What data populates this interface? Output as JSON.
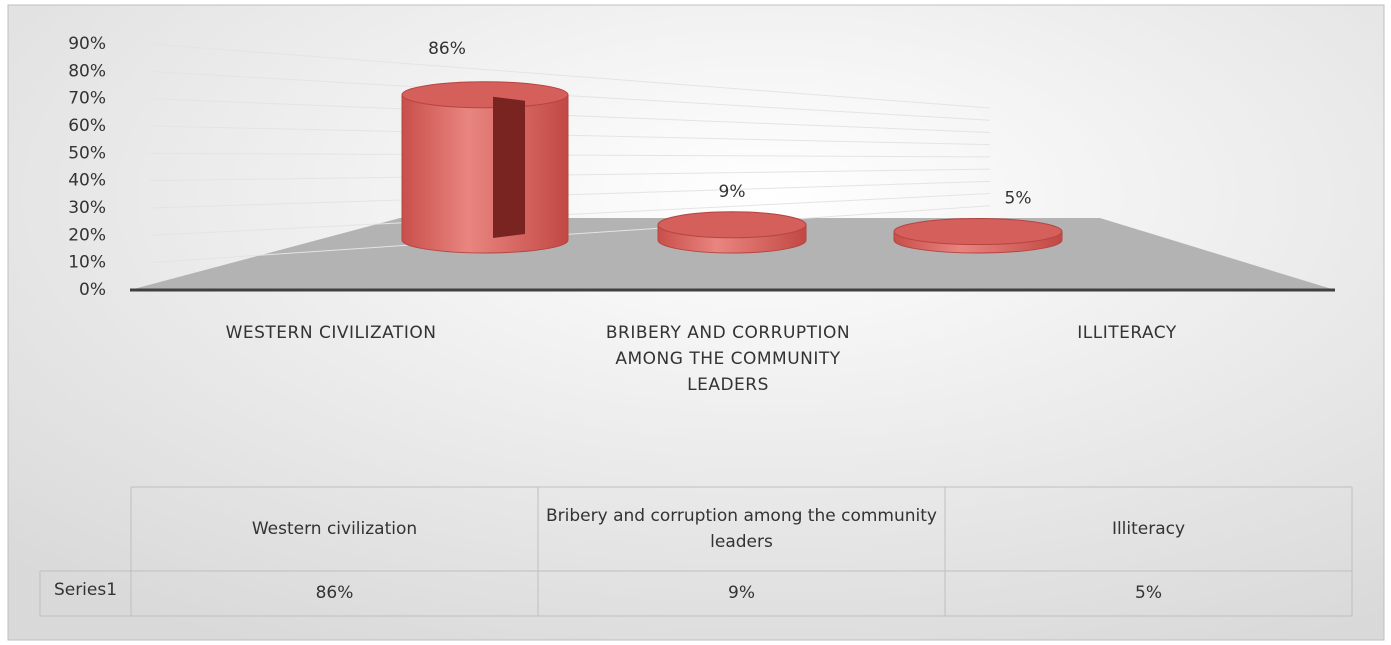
{
  "chart_data": {
    "type": "bar3d",
    "categories": [
      "WESTERN CIVILIZATION",
      "BRIBERY AND CORRUPTION AMONG THE COMMUNITY LEADERS",
      "ILLITERACY"
    ],
    "series": [
      {
        "name": "Series1",
        "color": "#d45f5b",
        "values": [
          86,
          9,
          5
        ],
        "value_labels": [
          "86%",
          "9%",
          "5%"
        ]
      }
    ],
    "ylim": [
      0,
      90
    ],
    "yticks": [
      {
        "value": 0,
        "label": "0%"
      },
      {
        "value": 10,
        "label": "10%"
      },
      {
        "value": 20,
        "label": "20%"
      },
      {
        "value": 30,
        "label": "30%"
      },
      {
        "value": 40,
        "label": "40%"
      },
      {
        "value": 50,
        "label": "50%"
      },
      {
        "value": 60,
        "label": "60%"
      },
      {
        "value": 70,
        "label": "70%"
      },
      {
        "value": 80,
        "label": "80%"
      },
      {
        "value": 90,
        "label": "90%"
      }
    ],
    "grid": true,
    "data_table": {
      "columns": [
        "Western civilization",
        "Bribery and corruption among the community leaders",
        "Illiteracy"
      ]
    }
  }
}
